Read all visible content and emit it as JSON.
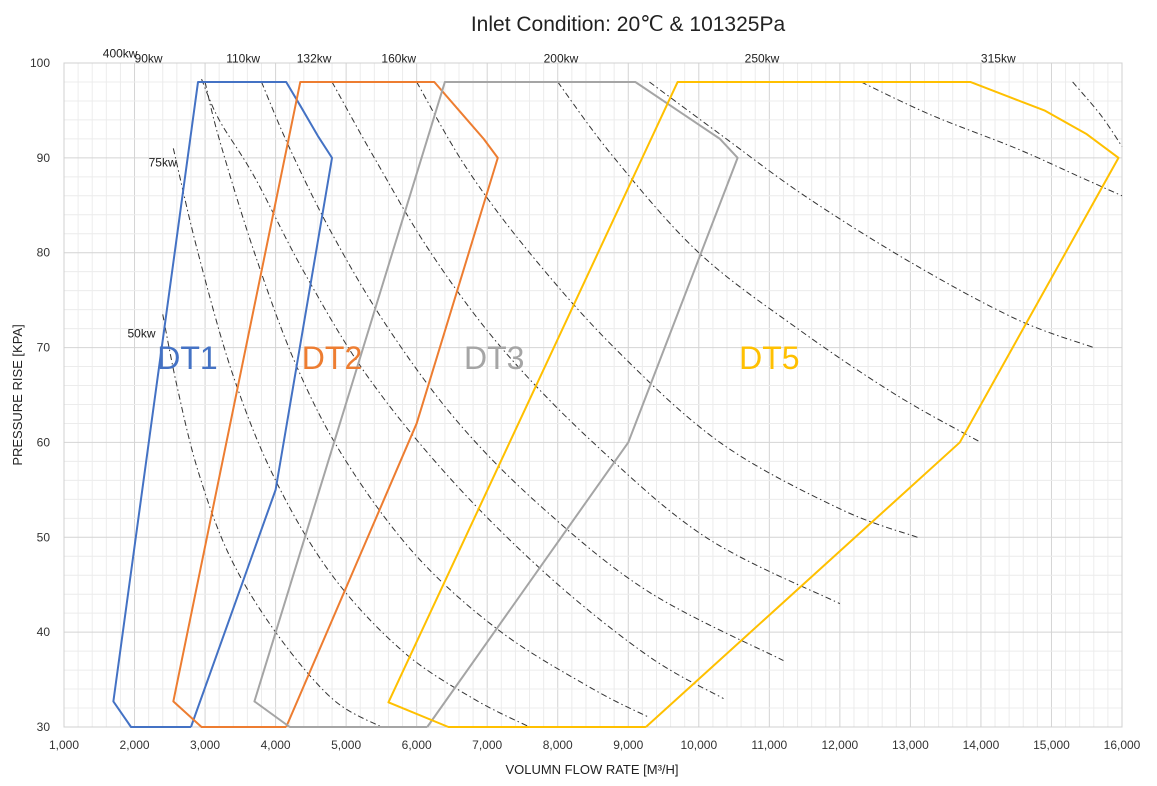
{
  "chart_data": {
    "type": "line",
    "title": "Inlet Condition: 20℃ & 101325Pa",
    "xlabel": "VOLUMN FLOW RATE [M³/H]",
    "ylabel": "PRESSURE RISE [KPA]",
    "xlim": [
      1000,
      16000
    ],
    "ylim": [
      30,
      100
    ],
    "x_ticks": [
      "1,000",
      "2,000",
      "3,000",
      "4,000",
      "5,000",
      "6,000",
      "7,000",
      "8,000",
      "9,000",
      "10,000",
      "11,000",
      "12,000",
      "13,000",
      "14,000",
      "15,000",
      "16,000"
    ],
    "y_ticks": [
      "30",
      "40",
      "50",
      "60",
      "70",
      "80",
      "90",
      "100"
    ],
    "grid": true,
    "series": [
      {
        "name": "DT1",
        "color": "#4472C4",
        "label_pos": [
          2750,
          69
        ],
        "points": [
          [
            2800,
            30
          ],
          [
            1950,
            30
          ],
          [
            1700,
            32.7
          ],
          [
            2900,
            98
          ],
          [
            4150,
            98
          ],
          [
            4350,
            95.5
          ],
          [
            4600,
            92.3
          ],
          [
            4800,
            90
          ],
          [
            4000,
            55
          ],
          [
            2800,
            30
          ]
        ]
      },
      {
        "name": "DT2",
        "color": "#ED7D31",
        "label_pos": [
          4800,
          69
        ],
        "points": [
          [
            4150,
            30
          ],
          [
            2950,
            30
          ],
          [
            2550,
            32.7
          ],
          [
            4350,
            98
          ],
          [
            6250,
            98
          ],
          [
            6600,
            95
          ],
          [
            6950,
            92
          ],
          [
            7150,
            90
          ],
          [
            6000,
            62
          ],
          [
            4150,
            30
          ]
        ]
      },
      {
        "name": "DT3",
        "color": "#A5A5A5",
        "label_pos": [
          7100,
          69
        ],
        "points": [
          [
            6150,
            30
          ],
          [
            4200,
            30
          ],
          [
            3700,
            32.7
          ],
          [
            6400,
            98
          ],
          [
            9100,
            98
          ],
          [
            9700,
            95
          ],
          [
            10300,
            92
          ],
          [
            10550,
            90
          ],
          [
            9000,
            60
          ],
          [
            6150,
            30
          ]
        ]
      },
      {
        "name": "DT5",
        "color": "#FFC000",
        "label_pos": [
          11000,
          69
        ],
        "points": [
          [
            9250,
            30
          ],
          [
            6450,
            30
          ],
          [
            5600,
            32.6
          ],
          [
            9700,
            98
          ],
          [
            13850,
            98
          ],
          [
            14900,
            95
          ],
          [
            15500,
            92.5
          ],
          [
            15950,
            90
          ],
          [
            13700,
            60
          ],
          [
            9250,
            30
          ]
        ]
      }
    ],
    "power_lines": [
      {
        "label": "50kw",
        "label_at": [
          1900,
          71.5
        ],
        "points": [
          [
            2400,
            73.5
          ],
          [
            2600,
            66
          ],
          [
            2900,
            57
          ],
          [
            3350,
            48
          ],
          [
            4000,
            40
          ],
          [
            4800,
            33
          ],
          [
            5500,
            30
          ]
        ]
      },
      {
        "label": "75kw",
        "label_at": [
          2200,
          89.5
        ],
        "points": [
          [
            2550,
            91
          ],
          [
            2900,
            80
          ],
          [
            3400,
            67
          ],
          [
            4000,
            56
          ],
          [
            4800,
            46
          ],
          [
            5800,
            38
          ],
          [
            6800,
            33
          ],
          [
            7600,
            30
          ]
        ]
      },
      {
        "label": "90kw",
        "label_at": [
          2000,
          100.5
        ],
        "points": [
          [
            3000,
            98
          ],
          [
            3200,
            92
          ],
          [
            3700,
            80
          ],
          [
            4300,
            68
          ],
          [
            5000,
            58
          ],
          [
            6000,
            48
          ],
          [
            7200,
            40
          ],
          [
            8500,
            34
          ],
          [
            9300,
            31
          ]
        ]
      },
      {
        "label": "400kw",
        "label_at": [
          1550,
          101
        ],
        "points": [
          [
            2950,
            98.3
          ],
          [
            3200,
            94
          ],
          [
            3700,
            88
          ],
          [
            4400,
            78
          ],
          [
            5300,
            67
          ],
          [
            6500,
            56
          ],
          [
            7900,
            45.7
          ],
          [
            9300,
            37.4
          ],
          [
            10350,
            33
          ]
        ]
      },
      {
        "label": "110kw",
        "label_at": [
          3300,
          100.5
        ],
        "points": [
          [
            3800,
            98
          ],
          [
            4200,
            91
          ],
          [
            4800,
            82
          ],
          [
            5600,
            72
          ],
          [
            6600,
            62
          ],
          [
            7800,
            53
          ],
          [
            9300,
            44.2
          ],
          [
            11200,
            37
          ]
        ]
      },
      {
        "label": "132kw",
        "label_at": [
          4300,
          100.5
        ],
        "points": [
          [
            4800,
            98
          ],
          [
            5400,
            90
          ],
          [
            6200,
            80
          ],
          [
            7200,
            70
          ],
          [
            8500,
            60
          ],
          [
            10100,
            50
          ],
          [
            12000,
            43
          ]
        ]
      },
      {
        "label": "160kw",
        "label_at": [
          5500,
          100.5
        ],
        "points": [
          [
            6000,
            98
          ],
          [
            6700,
            89
          ],
          [
            7600,
            80
          ],
          [
            8800,
            70
          ],
          [
            10300,
            60
          ],
          [
            12000,
            53
          ],
          [
            13100,
            50
          ]
        ]
      },
      {
        "label": "200kw",
        "label_at": [
          7800,
          100.5
        ],
        "points": [
          [
            8000,
            98
          ],
          [
            8800,
            90
          ],
          [
            10000,
            80
          ],
          [
            11400,
            72
          ],
          [
            12800,
            65
          ],
          [
            14000,
            60
          ]
        ]
      },
      {
        "label": "250kw",
        "label_at": [
          10650,
          100.5
        ],
        "points": [
          [
            9300,
            98
          ],
          [
            10300,
            92.5
          ],
          [
            11500,
            86
          ],
          [
            13000,
            79
          ],
          [
            14500,
            73
          ],
          [
            15600,
            70
          ]
        ]
      },
      {
        "label": "315kw",
        "label_at": [
          14000,
          100.5
        ],
        "points": [
          [
            12300,
            98
          ],
          [
            13300,
            94.5
          ],
          [
            14500,
            91
          ],
          [
            15400,
            88
          ],
          [
            16000,
            86
          ]
        ]
      },
      {
        "label": "",
        "label_at": null,
        "points": [
          [
            15300,
            98
          ],
          [
            15700,
            94.5
          ],
          [
            16000,
            91.2
          ]
        ]
      }
    ]
  }
}
